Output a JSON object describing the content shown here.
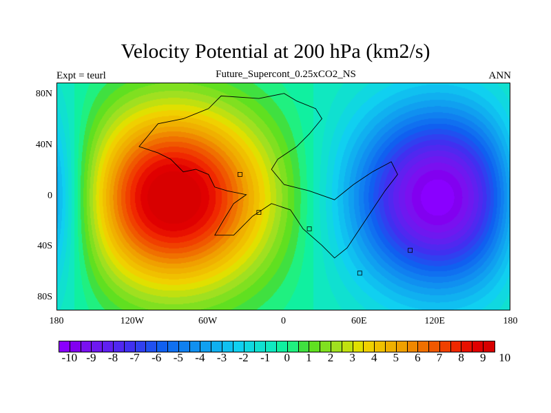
{
  "title": "Velocity Potential at 200 hPa (km2/s)",
  "subtitle": "Future_Supercont_0.25xCO2_NS",
  "left_string": "Expt = teurl",
  "right_string": "ANN",
  "chart_data": {
    "type": "heatmap",
    "title": "Velocity Potential at 200 hPa (km2/s)",
    "subtitle": "Future_Supercont_0.25xCO2_NS",
    "projection": "cylindrical equidistant",
    "x_ticks": [
      "180",
      "120W",
      "60W",
      "0",
      "60E",
      "120E",
      "180"
    ],
    "y_ticks": [
      "80N",
      "40N",
      "0",
      "40S",
      "80S"
    ],
    "xlim": [
      -180,
      180
    ],
    "ylim": [
      -90,
      90
    ],
    "colorbar_labels": [
      "-10",
      "-9",
      "-8",
      "-7",
      "-6",
      "-5",
      "-4",
      "-3",
      "-2",
      "-1",
      "0",
      "1",
      "2",
      "3",
      "4",
      "5",
      "6",
      "7",
      "8",
      "9",
      "10"
    ],
    "levels": [
      -10,
      -9.5,
      -9,
      -8.5,
      -8,
      -7.5,
      -7,
      -6.5,
      -6,
      -5.5,
      -5,
      -4.5,
      -4,
      -3.5,
      -3,
      -2.5,
      -2,
      -1.5,
      -1,
      -0.5,
      0,
      0.5,
      1,
      1.5,
      2,
      2.5,
      3,
      3.5,
      4,
      4.5,
      5,
      5.5,
      6,
      6.5,
      7,
      7.5,
      8,
      8.5,
      9,
      9.5,
      10
    ],
    "colors": [
      "#8a00ff",
      "#8200f0",
      "#7a10f0",
      "#6e18f0",
      "#6020f0",
      "#5028f0",
      "#4030f0",
      "#3040f0",
      "#2050f0",
      "#1060f0",
      "#1070f0",
      "#1080f0",
      "#1090f0",
      "#10a0f0",
      "#10b0f0",
      "#10c0f0",
      "#10d0f0",
      "#10d8e0",
      "#10e0d0",
      "#10e8c0",
      "#10f0a0",
      "#20f080",
      "#40e040",
      "#60e020",
      "#80e020",
      "#a0e020",
      "#c0e010",
      "#e0e000",
      "#f0d000",
      "#f0c000",
      "#f0b000",
      "#f0a000",
      "#f08800",
      "#f07000",
      "#f05800",
      "#f04000",
      "#f02800",
      "#e81000",
      "#e00000",
      "#d80000"
    ],
    "field_centers": [
      {
        "lon": -90,
        "lat": 0,
        "value": 10.5,
        "desc": "maximum over western hemisphere"
      },
      {
        "lon": 125,
        "lat": 0,
        "value": -10.2,
        "desc": "minimum over eastern hemisphere"
      }
    ]
  }
}
